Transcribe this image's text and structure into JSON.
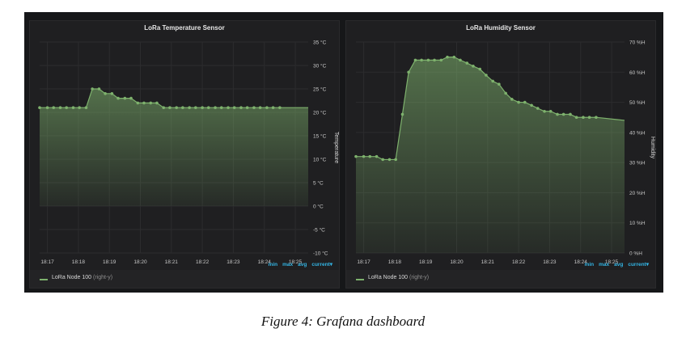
{
  "caption": "Figure 4: Grafana dashboard",
  "colors": {
    "series": "#7eb26d",
    "stats": "#33b5e5",
    "panel": "#1f1f21",
    "background": "#161719"
  },
  "panels": [
    {
      "title": "LoRa Temperature Sensor",
      "y_axis_label": "Temperature",
      "legend": {
        "series": "LoRa Node 100",
        "axis": "(right-y)"
      },
      "stats": [
        "min",
        "max",
        "avg",
        "current▾"
      ],
      "chart_data": {
        "type": "area",
        "title": "LoRa Temperature Sensor",
        "ylabel": "Temperature",
        "x_ticks": [
          "18:17",
          "18:18",
          "18:19",
          "18:20",
          "18:21",
          "18:22",
          "18:23",
          "18:24",
          "18:25"
        ],
        "y_ticks": [
          "35 °C",
          "30 °C",
          "25 °C",
          "20 °C",
          "15 °C",
          "10 °C",
          "5 °C",
          "0 °C",
          "-5 °C",
          "-10 °C"
        ],
        "ylim": [
          -10,
          35
        ],
        "xlim": [
          "18:16:45",
          "18:25:25"
        ],
        "fill_baseline": 0,
        "series": [
          {
            "name": "LoRa Node 100",
            "x": [
              "18:16:45",
              "18:17:00",
              "18:17:12",
              "18:17:25",
              "18:17:37",
              "18:17:50",
              "18:18:02",
              "18:18:15",
              "18:18:27",
              "18:18:40",
              "18:18:52",
              "18:19:05",
              "18:19:17",
              "18:19:30",
              "18:19:42",
              "18:19:55",
              "18:20:07",
              "18:20:20",
              "18:20:32",
              "18:20:45",
              "18:20:57",
              "18:21:10",
              "18:21:22",
              "18:21:35",
              "18:21:47",
              "18:22:00",
              "18:22:12",
              "18:22:25",
              "18:22:37",
              "18:22:50",
              "18:23:02",
              "18:23:15",
              "18:23:27",
              "18:23:40",
              "18:23:52",
              "18:24:05",
              "18:24:17",
              "18:24:30",
              "18:25:25"
            ],
            "y": [
              21,
              21,
              21,
              21,
              21,
              21,
              21,
              21,
              25,
              25,
              24,
              24,
              23,
              23,
              23,
              22,
              22,
              22,
              22,
              21,
              21,
              21,
              21,
              21,
              21,
              21,
              21,
              21,
              21,
              21,
              21,
              21,
              21,
              21,
              21,
              21,
              21,
              21,
              21
            ],
            "markers_until": "18:24:30"
          }
        ]
      }
    },
    {
      "title": "LoRa Humidity Sensor",
      "y_axis_label": "Humidity",
      "legend": {
        "series": "LoRa Node 100",
        "axis": "(right-y)"
      },
      "stats": [
        "min",
        "max",
        "avg",
        "current▾"
      ],
      "chart_data": {
        "type": "area",
        "title": "LoRa Humidity Sensor",
        "ylabel": "Humidity",
        "x_ticks": [
          "18:17",
          "18:18",
          "18:19",
          "18:20",
          "18:21",
          "18:22",
          "18:23",
          "18:24",
          "18:25"
        ],
        "y_ticks": [
          "70 %H",
          "60 %H",
          "50 %H",
          "40 %H",
          "30 %H",
          "20 %H",
          "10 %H",
          "0 %H"
        ],
        "ylim": [
          0,
          70
        ],
        "xlim": [
          "18:16:45",
          "18:25:25"
        ],
        "fill_baseline": 0,
        "series": [
          {
            "name": "LoRa Node 100",
            "x": [
              "18:16:45",
              "18:17:00",
              "18:17:12",
              "18:17:25",
              "18:17:37",
              "18:17:50",
              "18:18:02",
              "18:18:15",
              "18:18:27",
              "18:18:40",
              "18:18:52",
              "18:19:05",
              "18:19:17",
              "18:19:30",
              "18:19:42",
              "18:19:55",
              "18:20:07",
              "18:20:20",
              "18:20:32",
              "18:20:45",
              "18:20:57",
              "18:21:10",
              "18:21:22",
              "18:21:35",
              "18:21:47",
              "18:22:00",
              "18:22:12",
              "18:22:25",
              "18:22:37",
              "18:22:50",
              "18:23:02",
              "18:23:15",
              "18:23:27",
              "18:23:40",
              "18:23:52",
              "18:24:05",
              "18:24:17",
              "18:24:30",
              "18:25:25"
            ],
            "y": [
              32,
              32,
              32,
              32,
              31,
              31,
              31,
              46,
              60,
              64,
              64,
              64,
              64,
              64,
              65,
              65,
              64,
              63,
              62,
              61,
              59,
              57,
              56,
              53,
              51,
              50,
              50,
              49,
              48,
              47,
              47,
              46,
              46,
              46,
              45,
              45,
              45,
              45,
              44
            ],
            "markers_until": "18:24:30"
          }
        ]
      }
    }
  ]
}
